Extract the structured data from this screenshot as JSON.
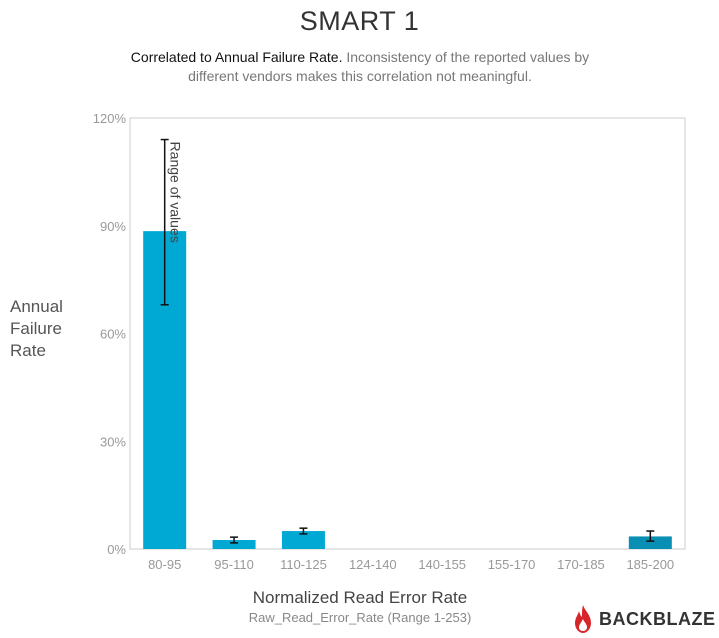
{
  "chart_data": {
    "type": "bar",
    "title": "SMART 1",
    "subtitle_lead": "Correlated to Annual Failure Rate.",
    "subtitle_rest": "Inconsistency of the reported values by different vendors makes this correlation not meaningful.",
    "ylabel": "Annual Failure Rate",
    "xlabel": "Normalized Read Error Rate",
    "xsublabel": "Raw_Read_Error_Rate (Range 1-253)",
    "categories": [
      "80-95",
      "95-110",
      "110-125",
      "124-140",
      "140-155",
      "155-170",
      "170-185",
      "185-200"
    ],
    "values": [
      88.5,
      2.5,
      5,
      0,
      0,
      0,
      0,
      3.5
    ],
    "error_low": [
      68,
      1.7,
      4.2,
      null,
      null,
      null,
      null,
      2.2
    ],
    "error_high": [
      114,
      3.3,
      5.8,
      null,
      null,
      null,
      null,
      5
    ],
    "ylim": [
      0,
      120
    ],
    "yticks": [
      0,
      30,
      60,
      90,
      120
    ],
    "ytick_labels": [
      "0%",
      "30%",
      "60%",
      "90%",
      "120%"
    ],
    "annotation": "Range of values",
    "grid": false,
    "colors": {
      "bar": "#00a8d4",
      "bar_last": "#0a8fb4",
      "error": "#111111",
      "axis": "#cccccc"
    }
  },
  "logo": {
    "text": "BACKBLAZE",
    "icon": "flame-icon",
    "color": "#d6262a"
  }
}
